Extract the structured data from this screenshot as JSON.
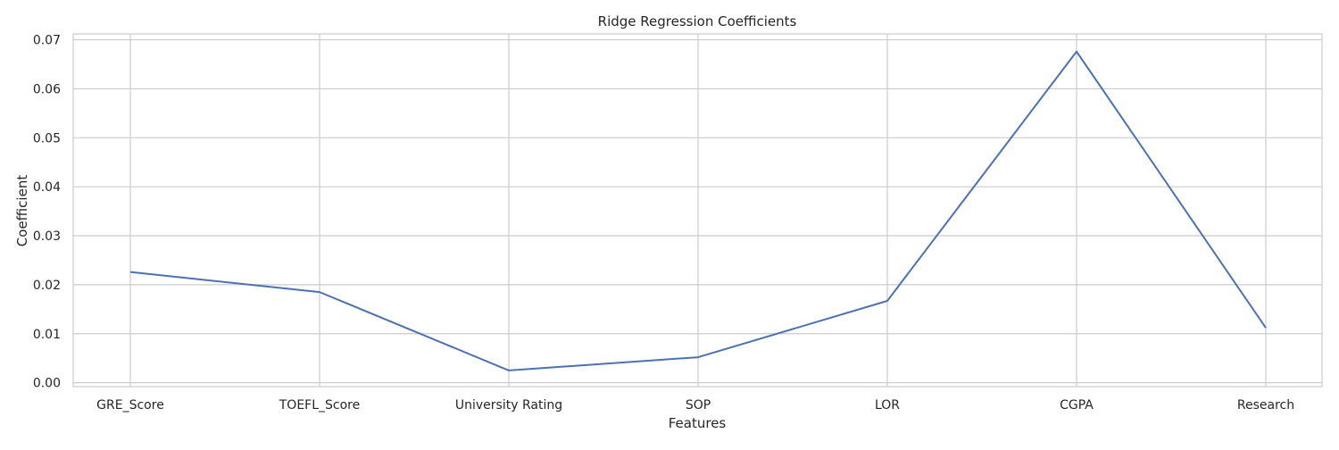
{
  "chart_data": {
    "type": "line",
    "title": "Ridge Regression Coefficients",
    "xlabel": "Features",
    "ylabel": "Coefficient",
    "categories": [
      "GRE_Score",
      "TOEFL_Score",
      "University Rating",
      "SOP",
      "LOR",
      "CGPA",
      "Research"
    ],
    "series": [
      {
        "values": [
          0.0226,
          0.0185,
          0.0025,
          0.0052,
          0.0167,
          0.0676,
          0.0112
        ]
      }
    ],
    "ylim": [
      -0.0008,
      0.0712
    ],
    "yticks": [
      0.0,
      0.01,
      0.02,
      0.03,
      0.04,
      0.05,
      0.06,
      0.07
    ],
    "ytick_labels": [
      "0.00",
      "0.01",
      "0.02",
      "0.03",
      "0.04",
      "0.05",
      "0.06",
      "0.07"
    ],
    "grid": true,
    "colors": {
      "line": "#4c72b0",
      "grid": "#cccccc",
      "frame": "#cccccc"
    }
  }
}
